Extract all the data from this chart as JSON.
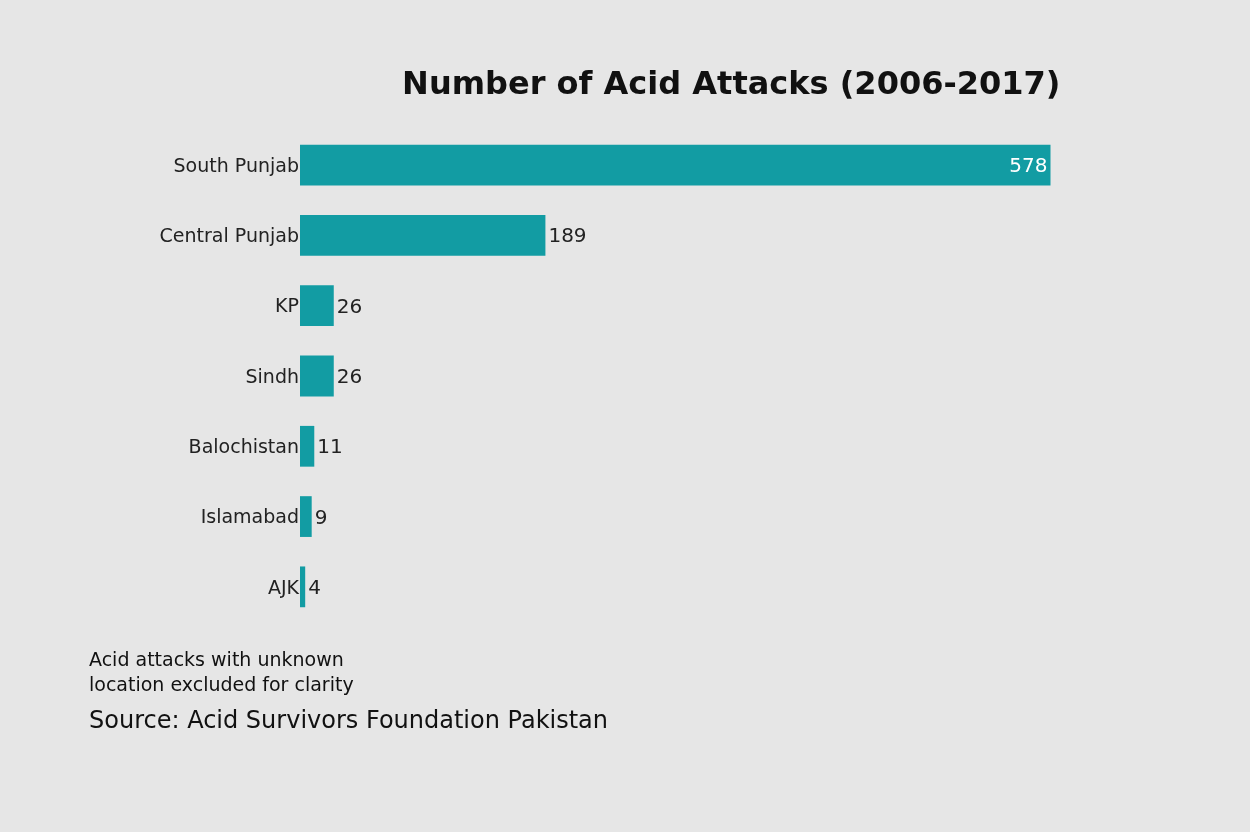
{
  "chart_data": {
    "type": "bar",
    "orientation": "horizontal",
    "title": "Number of Acid Attacks (2006-2017)",
    "categories": [
      "South Punjab",
      "Central Punjab",
      "KP",
      "Sindh",
      "Balochistan",
      "Islamabad",
      "AJK"
    ],
    "values": [
      578,
      189,
      26,
      26,
      11,
      9,
      4
    ],
    "color": "#129ca3",
    "data_labels": true,
    "tick_labels": "y",
    "grid": false,
    "legend": false,
    "annotations": [
      "Acid attacks with unknown location excluded for clarity",
      "Source: Acid Survivors Foundation Pakistan"
    ]
  }
}
